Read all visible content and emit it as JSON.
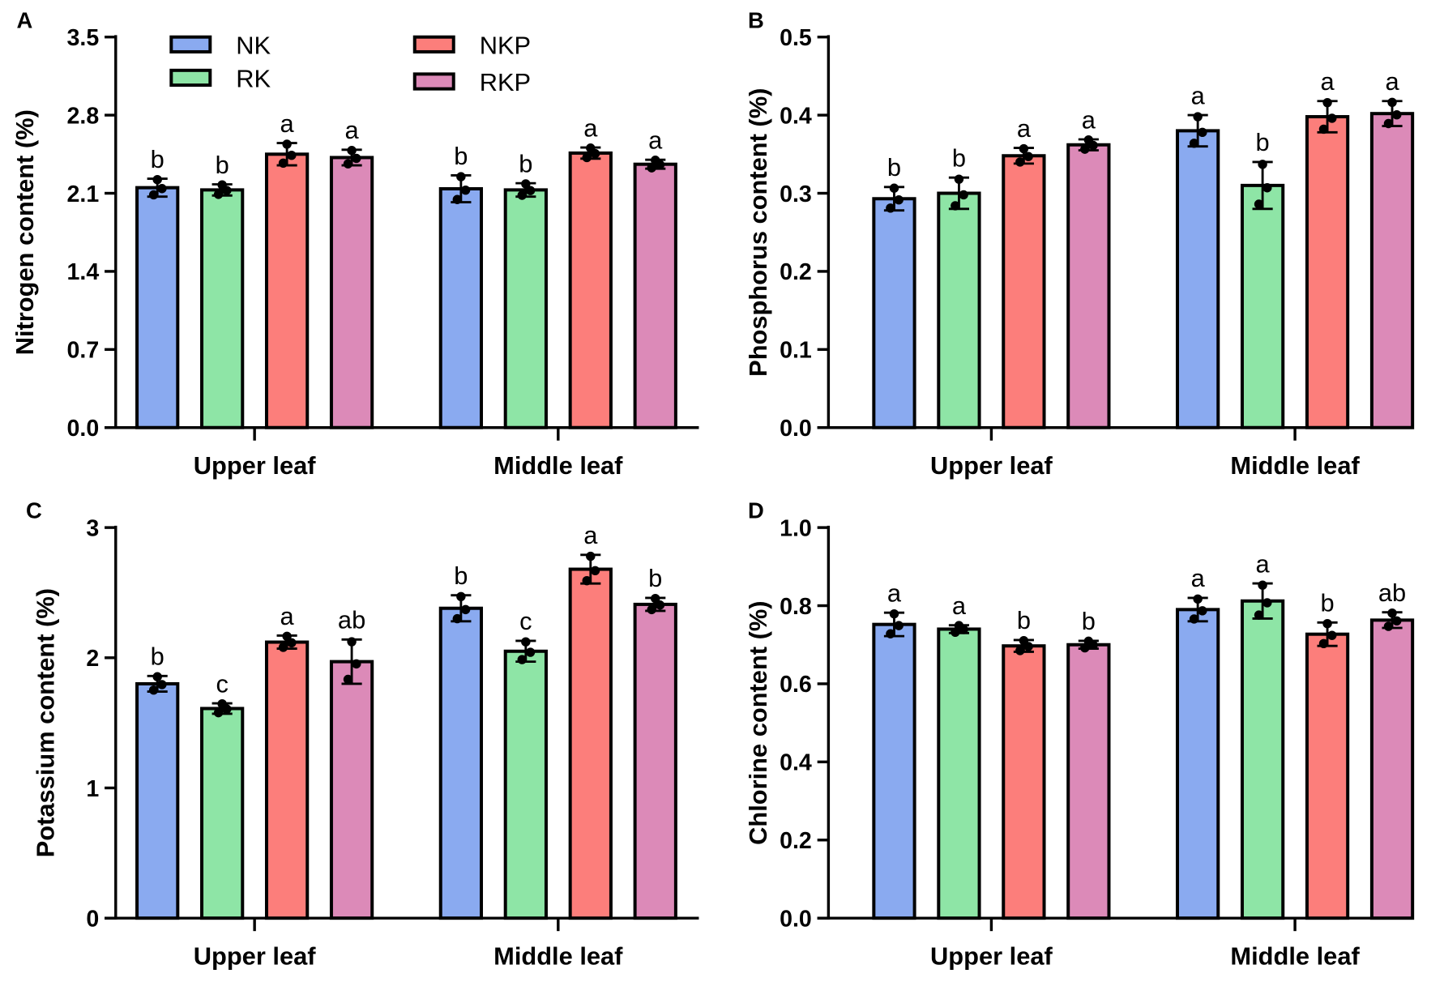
{
  "legend": [
    {
      "name": "NK",
      "color": "#8aaaf0"
    },
    {
      "name": "RK",
      "color": "#8ee5a6"
    },
    {
      "name": "NKP",
      "color": "#fc7e7b"
    },
    {
      "name": "RKP",
      "color": "#dc8ab8"
    }
  ],
  "chart_data": [
    {
      "type": "bar",
      "panel": "A",
      "ylabel": "Nitrogen content (%)",
      "categories": [
        "Upper leaf",
        "Middle leaf"
      ],
      "ylim": [
        0,
        3.5
      ],
      "yticks": [
        "0.0",
        "0.7",
        "1.4",
        "2.1",
        "2.8",
        "3.5"
      ],
      "grid": false,
      "series": [
        {
          "name": "NK",
          "values": [
            2.15,
            2.14
          ],
          "errors": [
            0.08,
            0.12
          ],
          "letters": [
            "b",
            "b"
          ]
        },
        {
          "name": "RK",
          "values": [
            2.13,
            2.13
          ],
          "errors": [
            0.05,
            0.06
          ],
          "letters": [
            "b",
            "b"
          ]
        },
        {
          "name": "NKP",
          "values": [
            2.45,
            2.46
          ],
          "errors": [
            0.1,
            0.05
          ],
          "letters": [
            "a",
            "a"
          ]
        },
        {
          "name": "RKP",
          "values": [
            2.42,
            2.36
          ],
          "errors": [
            0.07,
            0.04
          ],
          "letters": [
            "a",
            "a"
          ]
        }
      ]
    },
    {
      "type": "bar",
      "panel": "B",
      "ylabel": "Phosphorus content (%)",
      "categories": [
        "Upper leaf",
        "Middle leaf"
      ],
      "ylim": [
        0,
        0.5
      ],
      "yticks": [
        "0.0",
        "0.1",
        "0.2",
        "0.3",
        "0.4",
        "0.5"
      ],
      "grid": false,
      "series": [
        {
          "name": "NK",
          "values": [
            0.293,
            0.38
          ],
          "errors": [
            0.015,
            0.02
          ],
          "letters": [
            "b",
            "a"
          ]
        },
        {
          "name": "RK",
          "values": [
            0.3,
            0.31
          ],
          "errors": [
            0.02,
            0.03
          ],
          "letters": [
            "b",
            "b"
          ]
        },
        {
          "name": "NKP",
          "values": [
            0.348,
            0.398
          ],
          "errors": [
            0.01,
            0.02
          ],
          "letters": [
            "a",
            "a"
          ]
        },
        {
          "name": "RKP",
          "values": [
            0.362,
            0.402
          ],
          "errors": [
            0.007,
            0.016
          ],
          "letters": [
            "a",
            "a"
          ]
        }
      ]
    },
    {
      "type": "bar",
      "panel": "C",
      "ylabel": "Potassium content (%)",
      "categories": [
        "Upper leaf",
        "Middle leaf"
      ],
      "ylim": [
        0,
        3
      ],
      "yticks": [
        "0",
        "1",
        "2",
        "3"
      ],
      "grid": false,
      "series": [
        {
          "name": "NK",
          "values": [
            1.8,
            2.38
          ],
          "errors": [
            0.06,
            0.1
          ],
          "letters": [
            "b",
            "b"
          ]
        },
        {
          "name": "RK",
          "values": [
            1.61,
            2.05
          ],
          "errors": [
            0.04,
            0.08
          ],
          "letters": [
            "c",
            "c"
          ]
        },
        {
          "name": "NKP",
          "values": [
            2.12,
            2.68
          ],
          "errors": [
            0.05,
            0.11
          ],
          "letters": [
            "a",
            "a"
          ]
        },
        {
          "name": "RKP",
          "values": [
            1.97,
            2.41
          ],
          "errors": [
            0.17,
            0.05
          ],
          "letters": [
            "ab",
            "b"
          ]
        }
      ]
    },
    {
      "type": "bar",
      "panel": "D",
      "ylabel": "Chlorine content (%)",
      "categories": [
        "Upper leaf",
        "Middle leaf"
      ],
      "ylim": [
        0,
        1.0
      ],
      "yticks": [
        "0.0",
        "0.2",
        "0.4",
        "0.6",
        "0.8",
        "1.0"
      ],
      "grid": false,
      "series": [
        {
          "name": "NK",
          "values": [
            0.752,
            0.79
          ],
          "errors": [
            0.03,
            0.03
          ],
          "letters": [
            "a",
            "a"
          ]
        },
        {
          "name": "RK",
          "values": [
            0.74,
            0.812
          ],
          "errors": [
            0.01,
            0.045
          ],
          "letters": [
            "a",
            "a"
          ]
        },
        {
          "name": "NKP",
          "values": [
            0.697,
            0.727
          ],
          "errors": [
            0.015,
            0.03
          ],
          "letters": [
            "b",
            "b"
          ]
        },
        {
          "name": "RKP",
          "values": [
            0.7,
            0.763
          ],
          "errors": [
            0.01,
            0.02
          ],
          "letters": [
            "b",
            "ab"
          ]
        }
      ]
    }
  ]
}
